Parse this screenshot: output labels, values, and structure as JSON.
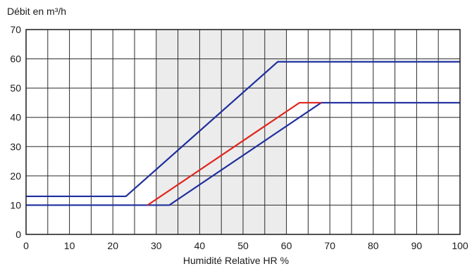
{
  "chart_data": {
    "type": "line",
    "title": "",
    "xlabel": "Humidité Relative HR %",
    "ylabel": "Débit en m³/h",
    "xlim": [
      0,
      100
    ],
    "ylim": [
      0,
      70
    ],
    "x_ticks": [
      0,
      10,
      20,
      30,
      40,
      50,
      60,
      70,
      80,
      90,
      100
    ],
    "y_ticks": [
      0,
      10,
      20,
      30,
      40,
      50,
      60,
      70
    ],
    "grid": true,
    "shaded_band": [
      30,
      60
    ],
    "series": [
      {
        "color": "#1f2f9e",
        "x": [
          0,
          23,
          58,
          100
        ],
        "y": [
          13,
          13,
          59,
          59
        ]
      },
      {
        "color": "#1f2f9e",
        "x": [
          0,
          33,
          68,
          100
        ],
        "y": [
          10,
          10,
          45,
          45
        ]
      },
      {
        "color": "#e0261f",
        "x": [
          28,
          63,
          68
        ],
        "y": [
          10,
          45,
          45
        ]
      }
    ]
  }
}
